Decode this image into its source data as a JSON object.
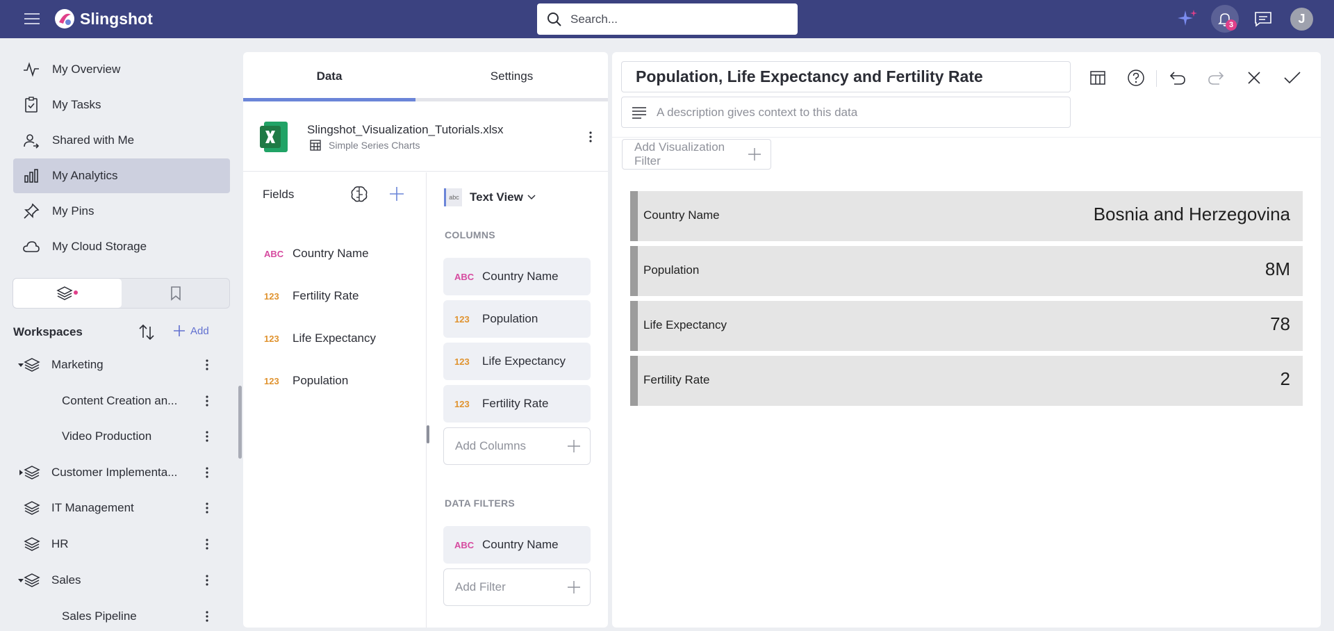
{
  "header": {
    "app_name": "Slingshot",
    "search_placeholder": "Search...",
    "notification_count": "3",
    "avatar_initial": "J"
  },
  "sidebar": {
    "nav": [
      {
        "label": "My Overview",
        "icon": "activity-icon"
      },
      {
        "label": "My Tasks",
        "icon": "task-icon"
      },
      {
        "label": "Shared with Me",
        "icon": "shared-user-icon"
      },
      {
        "label": "My Analytics",
        "icon": "bar-chart-icon",
        "active": true
      },
      {
        "label": "My Pins",
        "icon": "pin-icon"
      },
      {
        "label": "My Cloud Storage",
        "icon": "cloud-icon"
      }
    ],
    "workspaces_title": "Workspaces",
    "add_label": "Add",
    "tree": [
      {
        "label": "Marketing",
        "expanded": true
      },
      {
        "label": "Content Creation an..."
      },
      {
        "label": "Video Production"
      },
      {
        "label": "Customer Implementa...",
        "expanded": false
      },
      {
        "label": "IT Management"
      },
      {
        "label": "HR"
      },
      {
        "label": "Sales",
        "expanded": true
      },
      {
        "label": "Sales Pipeline"
      }
    ]
  },
  "data_panel": {
    "tabs": [
      "Data",
      "Settings"
    ],
    "file_name": "Slingshot_Visualization_Tutorials.xlsx",
    "sheet_name": "Simple Series Charts",
    "fields_title": "Fields",
    "fields": [
      {
        "type": "ABC",
        "name": "Country Name"
      },
      {
        "type": "123",
        "name": "Fertility Rate"
      },
      {
        "type": "123",
        "name": "Life Expectancy"
      },
      {
        "type": "123",
        "name": "Population"
      }
    ],
    "view_icon_text": "abc",
    "view_label": "Text View",
    "columns_label": "COLUMNS",
    "columns": [
      {
        "type": "ABC",
        "name": "Country Name"
      },
      {
        "type": "123",
        "name": "Population"
      },
      {
        "type": "123",
        "name": "Life Expectancy"
      },
      {
        "type": "123",
        "name": "Fertility Rate"
      }
    ],
    "add_columns": "Add Columns",
    "data_filters_label": "DATA FILTERS",
    "filters": [
      {
        "type": "ABC",
        "name": "Country Name"
      }
    ],
    "add_filter": "Add Filter"
  },
  "viz": {
    "title": "Population, Life Expectancy and Fertility Rate",
    "description_placeholder": "A description gives context to this data",
    "add_filter_label": "Add Visualization Filter",
    "rows": [
      {
        "key": "Country Name",
        "value": "Bosnia and Herzegovina"
      },
      {
        "key": "Population",
        "value": "8M"
      },
      {
        "key": "Life Expectancy",
        "value": "78"
      },
      {
        "key": "Fertility Rate",
        "value": "2"
      }
    ]
  },
  "colors": {
    "topbar": "#3b4280",
    "accent": "#6b85d8",
    "string_type": "#d64a9f",
    "number_type": "#e0932f",
    "excel_green": "#1f7a45"
  }
}
